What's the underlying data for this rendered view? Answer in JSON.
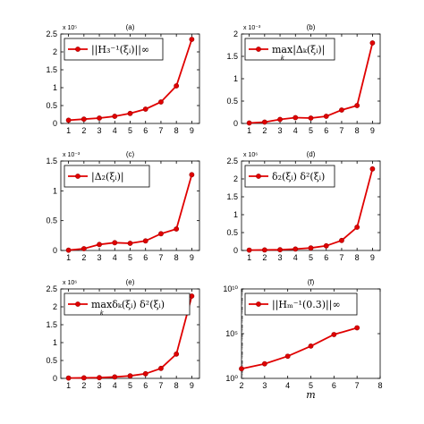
{
  "chart_data": [
    {
      "type": "line",
      "panel_label": "(a)",
      "exponent_label": "x 10⁵",
      "legend": "||H₃⁻¹(ξᵢ)||∞",
      "legend_position": "top-left",
      "x": [
        1,
        2,
        3,
        4,
        5,
        6,
        7,
        8,
        9
      ],
      "y": [
        9000,
        12000,
        15000,
        20000,
        28000,
        40000,
        60000,
        105000,
        235000
      ],
      "xlim": [
        0.5,
        9.5
      ],
      "ylim": [
        0,
        250000
      ],
      "yticks": [
        0,
        50000,
        100000,
        150000,
        200000,
        250000
      ],
      "ytick_labels": [
        "0",
        "0.5",
        "1",
        "1.5",
        "2",
        "2.5"
      ],
      "xscale": "linear",
      "yscale": "linear",
      "color": "#e00000"
    },
    {
      "type": "line",
      "panel_label": "(b)",
      "exponent_label": "x 10⁻³",
      "legend": "max|Δₖ(ξᵢ)|",
      "legend_sub": "k",
      "legend_position": "top-left",
      "x": [
        1,
        2,
        3,
        4,
        5,
        6,
        7,
        8,
        9
      ],
      "y": [
        1e-05,
        3e-05,
        9e-05,
        0.00013,
        0.00012,
        0.00016,
        0.0003,
        0.0004,
        0.0018
      ],
      "xlim": [
        0.5,
        9.5
      ],
      "ylim": [
        0,
        0.002
      ],
      "yticks": [
        0,
        0.0005,
        0.001,
        0.0015,
        0.002
      ],
      "ytick_labels": [
        "0",
        "0.5",
        "1",
        "1.5",
        "2"
      ],
      "xscale": "linear",
      "yscale": "linear",
      "color": "#e00000"
    },
    {
      "type": "line",
      "panel_label": "(c)",
      "exponent_label": "x 10⁻³",
      "legend": "|Δ₂(ξᵢ)|",
      "legend_position": "top-left",
      "x": [
        1,
        2,
        3,
        4,
        5,
        6,
        7,
        8,
        9
      ],
      "y": [
        5e-06,
        3e-05,
        0.0001,
        0.00013,
        0.00012,
        0.00016,
        0.00028,
        0.00036,
        0.00127
      ],
      "xlim": [
        0.5,
        9.5
      ],
      "ylim": [
        0,
        0.0015
      ],
      "yticks": [
        0,
        0.0005,
        0.001,
        0.0015
      ],
      "ytick_labels": [
        "0",
        "0.5",
        "1",
        "1.5"
      ],
      "xscale": "linear",
      "yscale": "linear",
      "color": "#e00000"
    },
    {
      "type": "line",
      "panel_label": "(d)",
      "exponent_label": "x 10⁶",
      "legend": "δ₂(ξᵢ) δ²(ξᵢ)",
      "legend_position": "top-left",
      "x": [
        1,
        2,
        3,
        4,
        5,
        6,
        7,
        8,
        9
      ],
      "y": [
        10000,
        15000,
        20000,
        40000,
        70000,
        130000,
        280000,
        650000,
        2280000
      ],
      "xlim": [
        0.5,
        9.5
      ],
      "ylim": [
        0,
        2500000
      ],
      "yticks": [
        0,
        500000,
        1000000,
        1500000,
        2000000,
        2500000
      ],
      "ytick_labels": [
        "0",
        "0.5",
        "1",
        "1.5",
        "2",
        "2.5"
      ],
      "xscale": "linear",
      "yscale": "linear",
      "color": "#e00000"
    },
    {
      "type": "line",
      "panel_label": "(e)",
      "exponent_label": "x 10⁶",
      "legend": "maxδₖ(ξᵢ) δ²(ξᵢ)",
      "legend_sub": "k",
      "legend_position": "top-left",
      "x": [
        1,
        2,
        3,
        4,
        5,
        6,
        7,
        8,
        9
      ],
      "y": [
        10000,
        15000,
        20000,
        40000,
        70000,
        130000,
        280000,
        680000,
        2300000
      ],
      "xlim": [
        0.5,
        9.5
      ],
      "ylim": [
        0,
        2500000
      ],
      "yticks": [
        0,
        500000,
        1000000,
        1500000,
        2000000,
        2500000
      ],
      "ytick_labels": [
        "0",
        "0.5",
        "1",
        "1.5",
        "2",
        "2.5"
      ],
      "xscale": "linear",
      "yscale": "linear",
      "color": "#e00000"
    },
    {
      "type": "line",
      "panel_label": "(f)",
      "legend": "||Hₘ⁻¹(0.3)||∞",
      "legend_position": "top-left",
      "xlabel": "m",
      "x": [
        2,
        3,
        4,
        5,
        6,
        7
      ],
      "y": [
        12,
        43,
        300,
        4100,
        80000,
        450000
      ],
      "xlim": [
        2,
        8
      ],
      "ylim": [
        1,
        10000000000
      ],
      "yticks": [
        1,
        100000,
        10000000000
      ],
      "ytick_labels": [
        "10⁰",
        "10⁵",
        "10¹⁰"
      ],
      "xscale": "linear",
      "yscale": "log",
      "color": "#e00000"
    }
  ]
}
